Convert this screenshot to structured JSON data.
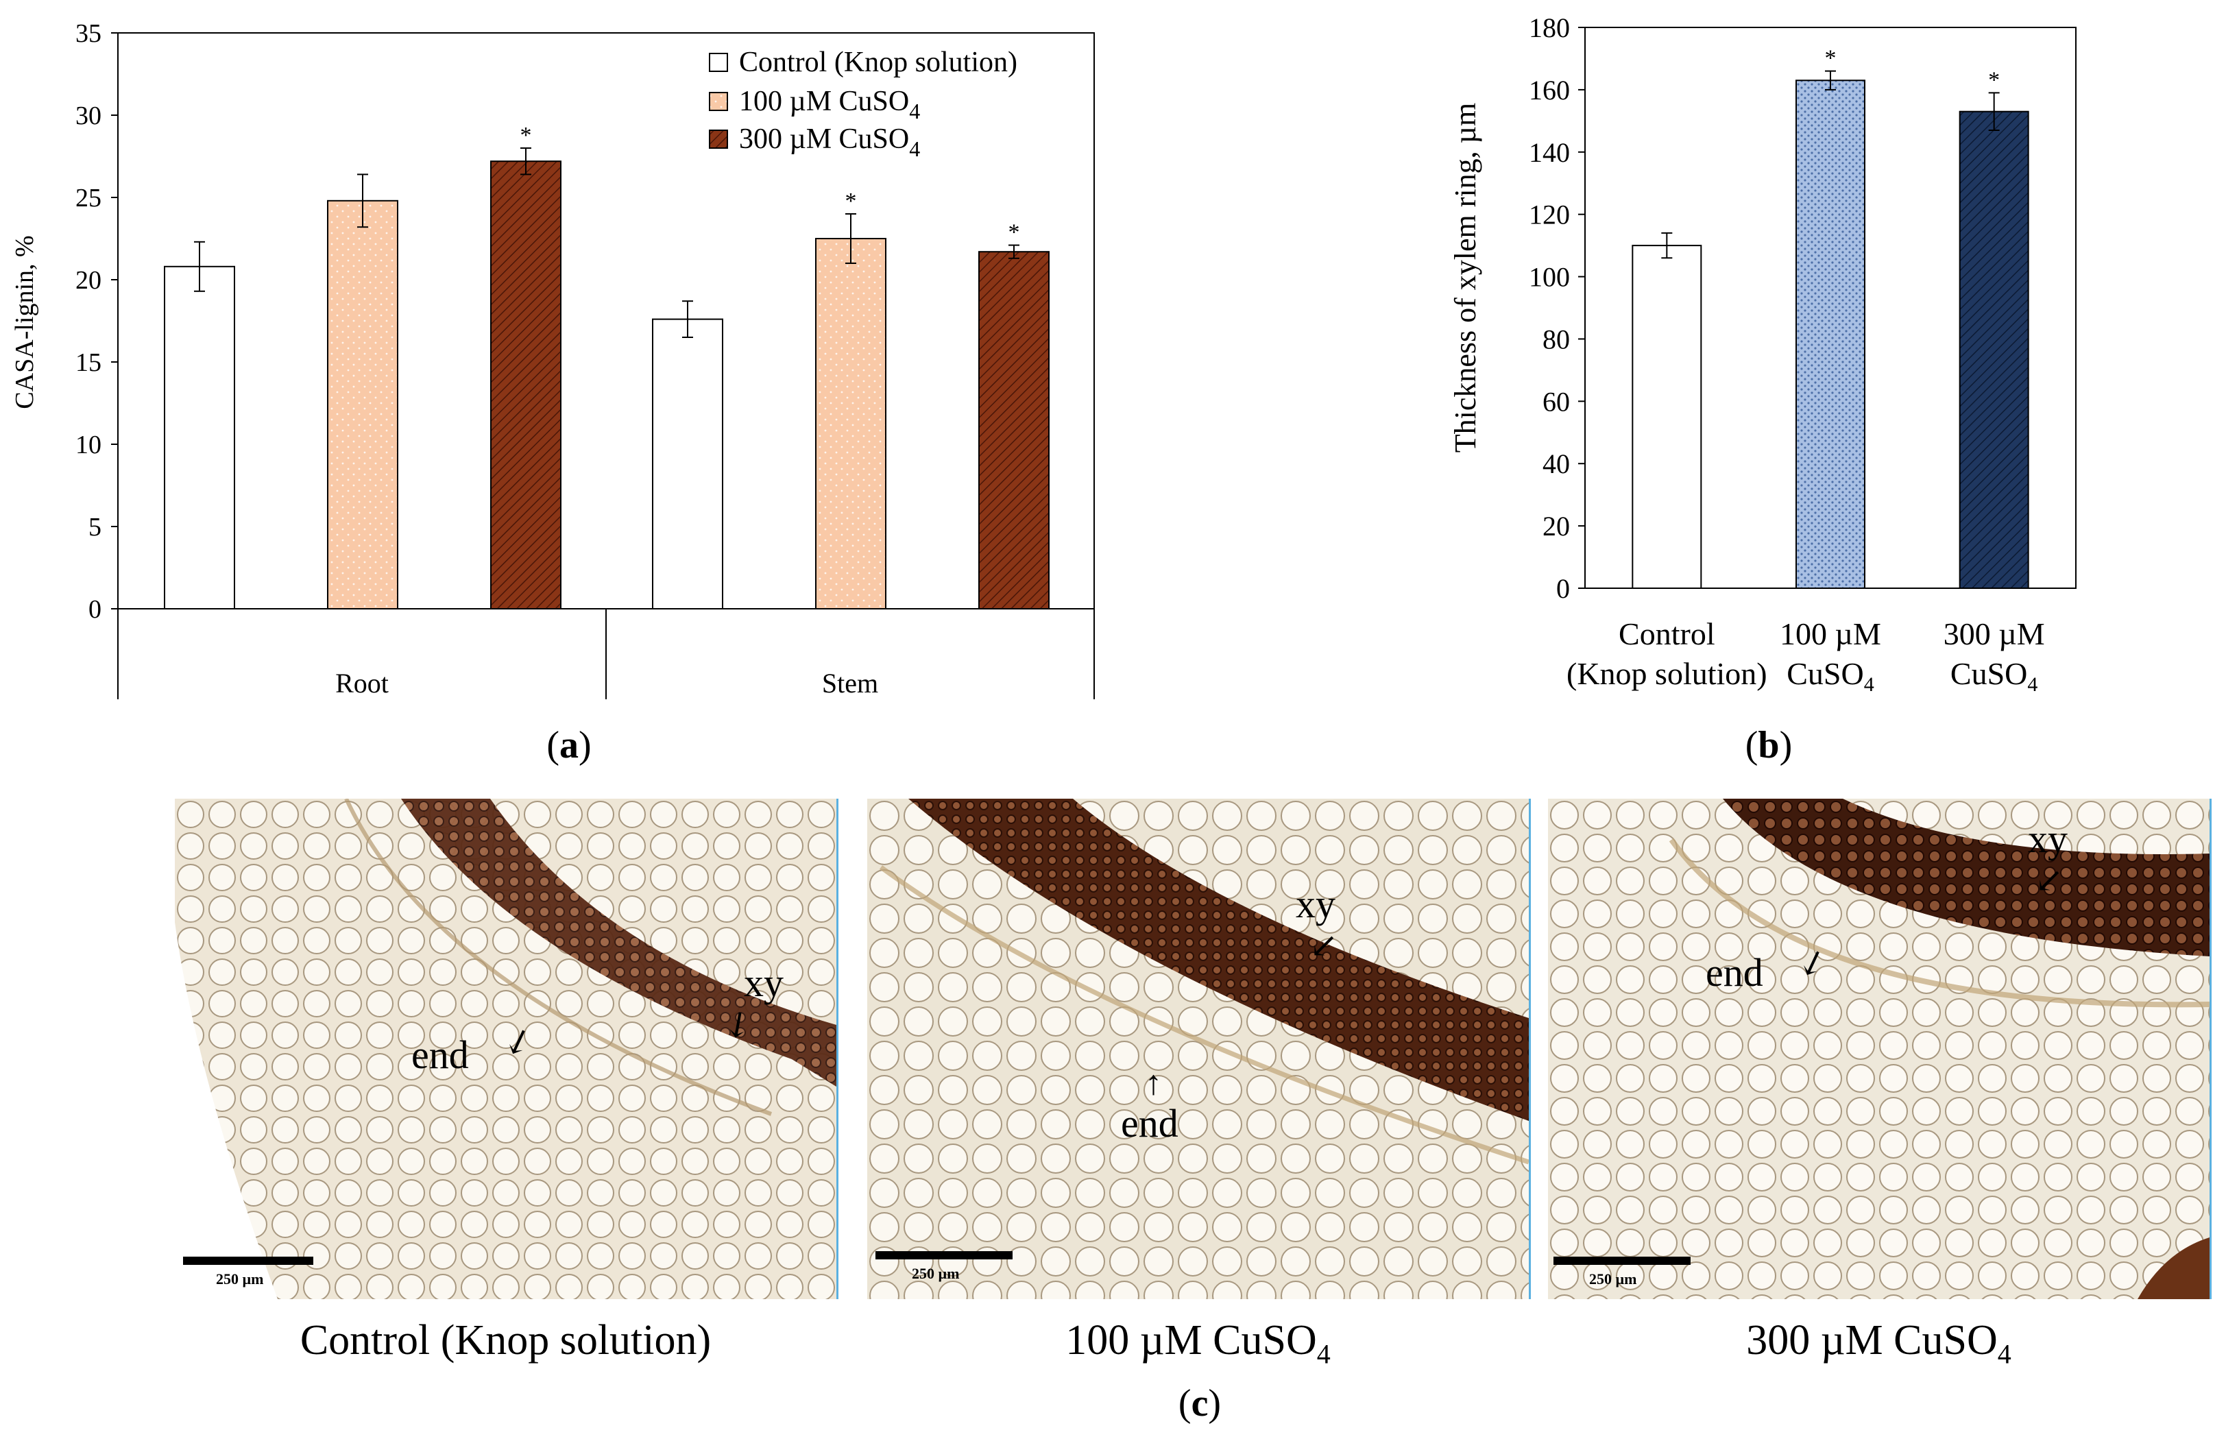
{
  "chart_data": [
    {
      "id": "a",
      "type": "bar",
      "ylabel": "CASA-lignin, %",
      "ylim": [
        0,
        35
      ],
      "yticks": [
        0,
        5,
        10,
        15,
        20,
        25,
        30,
        35
      ],
      "categories": [
        "Root",
        "Stem"
      ],
      "series": [
        {
          "name": "Control (Knop solution)",
          "values": [
            20.8,
            17.6
          ],
          "errors": [
            1.5,
            1.1
          ],
          "significant": [
            false,
            false
          ],
          "fill": "#ffffff"
        },
        {
          "name": "100 µM CuSO4",
          "values": [
            24.8,
            22.5
          ],
          "errors": [
            1.6,
            1.5
          ],
          "significant": [
            false,
            true
          ],
          "fill": "#f9c9a7"
        },
        {
          "name": "300 µM CuSO4",
          "values": [
            27.2,
            21.7
          ],
          "errors": [
            0.8,
            0.4
          ],
          "significant": [
            true,
            true
          ],
          "fill": "#8a3516"
        }
      ],
      "legend": {
        "position": "top-right",
        "entries": [
          {
            "text": "Control (Knop solution)",
            "sub": ""
          },
          {
            "text": "100 µM CuSO",
            "sub": "4"
          },
          {
            "text": "300 µM CuSO",
            "sub": "4"
          }
        ]
      },
      "marker": "*"
    },
    {
      "id": "b",
      "type": "bar",
      "ylabel": "Thickness of xylem ring, µm",
      "ylim": [
        0,
        180
      ],
      "yticks": [
        0,
        20,
        40,
        60,
        80,
        100,
        120,
        140,
        160,
        180
      ],
      "categories": [
        {
          "line1": "Control",
          "line2": "(Knop solution)",
          "sub": ""
        },
        {
          "line1": "100 µM",
          "line2": "CuSO",
          "sub": "4"
        },
        {
          "line1": "300 µM",
          "line2": "CuSO",
          "sub": "4"
        }
      ],
      "values": [
        110,
        163,
        153
      ],
      "errors": [
        4,
        3,
        6
      ],
      "significant": [
        false,
        true,
        true
      ],
      "fills": [
        "#ffffff",
        "#9fb8de",
        "#1f3760"
      ],
      "marker": "*"
    }
  ],
  "panel_labels": {
    "a": "a",
    "b": "b",
    "c": "c"
  },
  "micrographs": [
    {
      "caption": "Control (Knop solution)",
      "caption_sub": "",
      "scale_label": "250 µm",
      "labels": [
        "xy",
        "end"
      ]
    },
    {
      "caption": "100 µM CuSO",
      "caption_sub": "4",
      "scale_label": "250 µm",
      "labels": [
        "xy",
        "end"
      ]
    },
    {
      "caption": "300 µM CuSO",
      "caption_sub": "4",
      "scale_label": "250 µm",
      "labels": [
        "xy",
        "end"
      ]
    }
  ]
}
